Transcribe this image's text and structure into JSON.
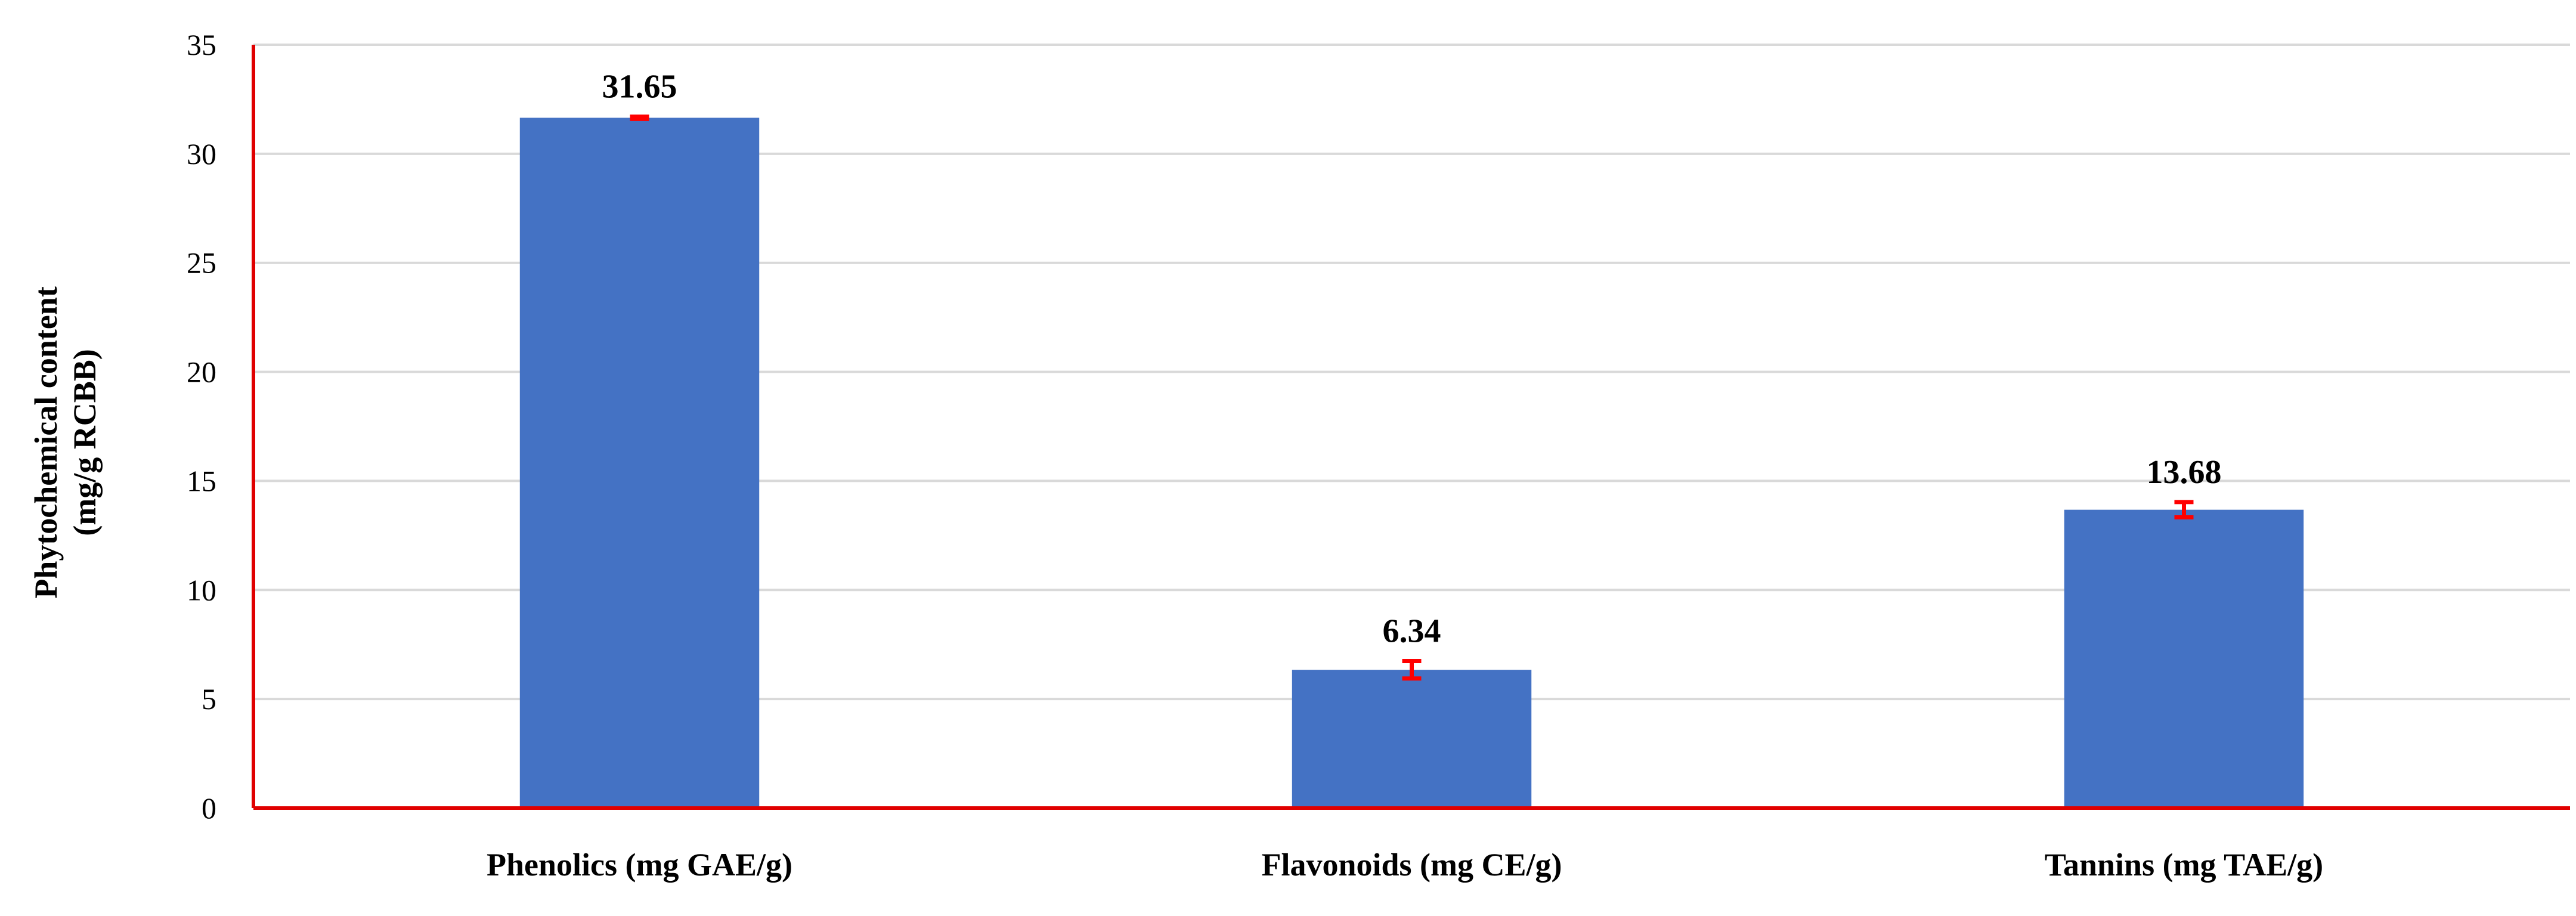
{
  "chart_data": {
    "type": "bar",
    "categories": [
      "Phenolics (mg GAE/g)",
      "Flavonoids (mg CE/g)",
      "Tannins (mg TAE/g)"
    ],
    "values": [
      31.65,
      6.34,
      13.68
    ],
    "value_labels": [
      "31.65",
      "6.34",
      "13.68"
    ],
    "error": [
      0.05,
      0.4,
      0.35
    ],
    "title": "",
    "xlabel": "",
    "ylabel": [
      "Phytochemical content",
      "(mg/g RCBB)"
    ],
    "ylim": [
      0,
      35
    ],
    "yticks": [
      0,
      5,
      10,
      15,
      20,
      25,
      30,
      35
    ],
    "grid": true,
    "legend": "none",
    "colors": {
      "bar": "#4472C4",
      "error_bar": "#FF0000",
      "axis": "#E00000",
      "grid": "#D9D9D9"
    }
  }
}
